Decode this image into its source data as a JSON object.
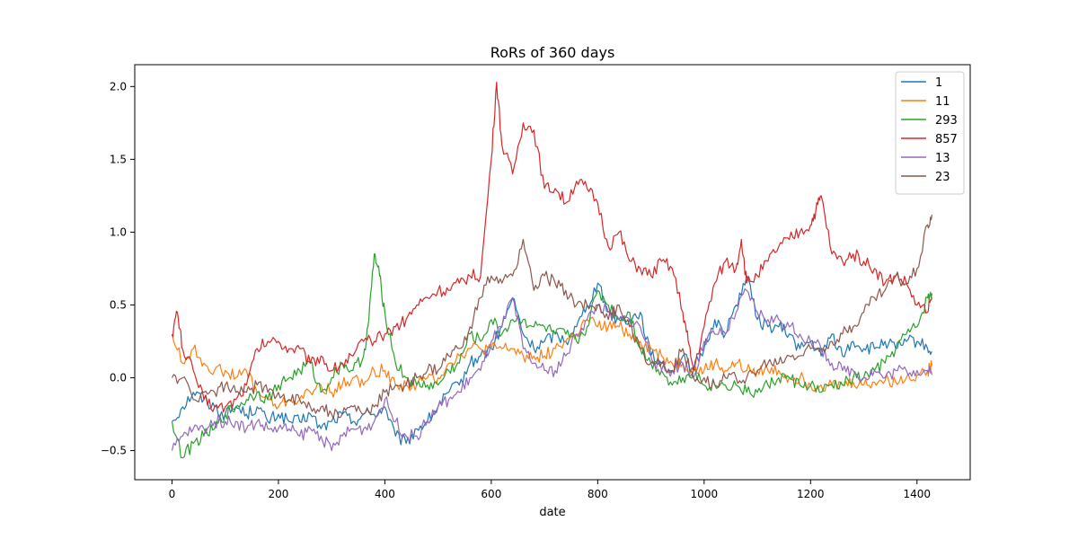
{
  "chart_data": {
    "type": "line",
    "title": "RoRs of 360 days",
    "xlabel": "date",
    "ylabel": "",
    "xlim": [
      -70,
      1500
    ],
    "ylim": [
      -0.7,
      2.15
    ],
    "xticks": [
      0,
      200,
      400,
      600,
      800,
      1000,
      1200,
      1400
    ],
    "yticks": [
      -0.5,
      0.0,
      0.5,
      1.0,
      1.5,
      2.0
    ],
    "xtick_labels": [
      "0",
      "200",
      "400",
      "600",
      "800",
      "1000",
      "1200",
      "1400"
    ],
    "ytick_labels": [
      "−0.5",
      "0.0",
      "0.5",
      "1.0",
      "1.5",
      "2.0"
    ],
    "grid": false,
    "legend_position": "top-right",
    "series": [
      {
        "name": "1",
        "color": "#1f77b4",
        "x": [
          0,
          20,
          40,
          60,
          80,
          100,
          120,
          140,
          160,
          180,
          200,
          220,
          240,
          260,
          280,
          300,
          320,
          340,
          360,
          380,
          400,
          420,
          440,
          460,
          480,
          500,
          520,
          540,
          560,
          580,
          600,
          620,
          640,
          660,
          680,
          700,
          720,
          740,
          760,
          780,
          800,
          820,
          840,
          860,
          880,
          900,
          920,
          940,
          960,
          980,
          1000,
          1020,
          1040,
          1060,
          1080,
          1100,
          1120,
          1140,
          1160,
          1180,
          1200,
          1220,
          1240,
          1260,
          1280,
          1300,
          1320,
          1340,
          1360,
          1380,
          1400,
          1420,
          1428
        ],
        "y": [
          -0.3,
          -0.2,
          -0.1,
          -0.15,
          -0.2,
          -0.25,
          -0.2,
          -0.25,
          -0.2,
          -0.3,
          -0.25,
          -0.3,
          -0.3,
          -0.25,
          -0.35,
          -0.3,
          -0.25,
          -0.3,
          -0.25,
          -0.25,
          -0.2,
          -0.4,
          -0.45,
          -0.35,
          -0.3,
          -0.2,
          -0.1,
          -0.05,
          0.1,
          0.15,
          0.2,
          0.35,
          0.55,
          0.3,
          0.2,
          0.25,
          0.3,
          0.25,
          0.35,
          0.5,
          0.65,
          0.45,
          0.4,
          0.4,
          0.45,
          0.15,
          0.1,
          0.05,
          0.15,
          0.05,
          0.2,
          0.4,
          0.3,
          0.5,
          0.7,
          0.4,
          0.35,
          0.35,
          0.3,
          0.2,
          0.25,
          0.15,
          0.3,
          0.15,
          0.25,
          0.2,
          0.2,
          0.25,
          0.2,
          0.25,
          0.25,
          0.2,
          0.18
        ]
      },
      {
        "name": "11",
        "color": "#ff7f0e",
        "x": [
          0,
          20,
          40,
          60,
          80,
          100,
          120,
          140,
          160,
          180,
          200,
          220,
          240,
          260,
          280,
          300,
          320,
          340,
          360,
          380,
          400,
          420,
          440,
          460,
          480,
          500,
          520,
          540,
          560,
          580,
          600,
          620,
          640,
          660,
          680,
          700,
          720,
          740,
          760,
          780,
          800,
          820,
          840,
          860,
          880,
          900,
          920,
          940,
          960,
          980,
          1000,
          1020,
          1040,
          1060,
          1080,
          1100,
          1120,
          1140,
          1160,
          1180,
          1200,
          1220,
          1240,
          1260,
          1280,
          1300,
          1320,
          1340,
          1360,
          1380,
          1400,
          1420,
          1428
        ],
        "y": [
          0.3,
          0.1,
          0.2,
          0.1,
          0.05,
          0.05,
          0.0,
          0.05,
          -0.1,
          -0.15,
          -0.2,
          -0.15,
          -0.15,
          -0.1,
          -0.05,
          -0.1,
          -0.05,
          0.0,
          -0.05,
          0.05,
          0.05,
          -0.05,
          -0.05,
          -0.05,
          0.0,
          0.0,
          0.1,
          0.15,
          0.2,
          0.2,
          0.2,
          0.2,
          0.2,
          0.15,
          0.15,
          0.15,
          0.2,
          0.25,
          0.3,
          0.4,
          0.35,
          0.35,
          0.35,
          0.3,
          0.25,
          0.2,
          0.15,
          0.1,
          0.1,
          0.05,
          0.05,
          0.1,
          0.05,
          0.1,
          0.05,
          0.05,
          0.05,
          0.05,
          0.0,
          0.0,
          -0.05,
          -0.05,
          -0.05,
          -0.05,
          -0.03,
          -0.05,
          -0.03,
          -0.02,
          -0.03,
          0.0,
          0.02,
          0.05,
          0.08
        ]
      },
      {
        "name": "293",
        "color": "#2ca02c",
        "x": [
          0,
          20,
          40,
          60,
          80,
          100,
          120,
          140,
          160,
          180,
          200,
          220,
          240,
          260,
          280,
          300,
          320,
          340,
          360,
          370,
          380,
          390,
          400,
          420,
          440,
          460,
          480,
          500,
          520,
          540,
          560,
          580,
          600,
          620,
          640,
          660,
          680,
          700,
          720,
          740,
          760,
          780,
          800,
          820,
          840,
          860,
          880,
          900,
          920,
          940,
          960,
          980,
          1000,
          1020,
          1040,
          1060,
          1080,
          1100,
          1120,
          1140,
          1160,
          1180,
          1200,
          1220,
          1240,
          1260,
          1280,
          1300,
          1320,
          1340,
          1360,
          1380,
          1400,
          1420,
          1428
        ],
        "y": [
          -0.3,
          -0.55,
          -0.45,
          -0.4,
          -0.35,
          -0.25,
          -0.2,
          -0.15,
          -0.1,
          -0.15,
          -0.05,
          0.0,
          0.05,
          0.1,
          -0.1,
          0.0,
          0.1,
          0.05,
          0.15,
          0.4,
          0.85,
          0.7,
          0.45,
          0.1,
          0.0,
          -0.05,
          -0.05,
          -0.05,
          0.05,
          0.1,
          0.3,
          0.25,
          0.4,
          0.3,
          0.4,
          0.4,
          0.35,
          0.35,
          0.3,
          0.3,
          0.25,
          0.35,
          0.6,
          0.5,
          0.4,
          0.45,
          0.2,
          0.1,
          0.05,
          -0.05,
          0.0,
          0.05,
          -0.05,
          -0.05,
          -0.05,
          -0.05,
          -0.1,
          -0.1,
          -0.05,
          0.0,
          0.0,
          -0.05,
          -0.05,
          -0.1,
          -0.05,
          -0.05,
          0.0,
          0.0,
          0.05,
          0.1,
          0.2,
          0.3,
          0.35,
          0.55,
          0.58
        ]
      },
      {
        "name": "857",
        "color": "#d62728",
        "x": [
          0,
          10,
          20,
          40,
          60,
          80,
          100,
          120,
          140,
          160,
          180,
          200,
          220,
          240,
          260,
          280,
          300,
          320,
          340,
          360,
          380,
          400,
          420,
          440,
          460,
          480,
          500,
          520,
          540,
          560,
          580,
          600,
          610,
          620,
          640,
          660,
          680,
          700,
          720,
          740,
          760,
          780,
          800,
          820,
          840,
          860,
          880,
          900,
          920,
          940,
          960,
          970,
          980,
          1000,
          1020,
          1040,
          1060,
          1070,
          1080,
          1100,
          1120,
          1140,
          1160,
          1180,
          1200,
          1210,
          1220,
          1240,
          1260,
          1280,
          1300,
          1320,
          1340,
          1360,
          1380,
          1400,
          1420,
          1428
        ],
        "y": [
          0.3,
          0.45,
          0.2,
          0.05,
          -0.15,
          -0.2,
          -0.2,
          -0.15,
          -0.05,
          0.2,
          0.25,
          0.25,
          0.2,
          0.2,
          0.1,
          0.15,
          0.05,
          0.1,
          0.15,
          0.25,
          0.25,
          0.3,
          0.35,
          0.4,
          0.5,
          0.55,
          0.6,
          0.6,
          0.65,
          0.7,
          0.7,
          1.5,
          2.03,
          1.6,
          1.4,
          1.75,
          1.7,
          1.3,
          1.3,
          1.2,
          1.35,
          1.3,
          1.2,
          0.9,
          1.0,
          0.8,
          0.75,
          0.7,
          0.8,
          0.75,
          0.45,
          0.25,
          0.05,
          0.35,
          0.65,
          0.8,
          0.75,
          0.95,
          0.65,
          0.7,
          0.8,
          0.9,
          0.95,
          1.0,
          1.05,
          1.15,
          1.25,
          0.85,
          0.8,
          0.85,
          0.8,
          0.75,
          0.65,
          0.7,
          0.65,
          0.5,
          0.45,
          0.55
        ]
      },
      {
        "name": "13",
        "color": "#9467bd",
        "x": [
          0,
          20,
          40,
          60,
          80,
          100,
          120,
          140,
          160,
          180,
          200,
          220,
          240,
          260,
          280,
          300,
          320,
          340,
          360,
          380,
          400,
          420,
          440,
          460,
          480,
          500,
          520,
          540,
          560,
          580,
          600,
          620,
          640,
          660,
          680,
          700,
          720,
          740,
          760,
          780,
          800,
          820,
          840,
          860,
          880,
          900,
          920,
          940,
          960,
          980,
          1000,
          1020,
          1040,
          1060,
          1080,
          1100,
          1120,
          1140,
          1160,
          1180,
          1200,
          1220,
          1240,
          1260,
          1280,
          1300,
          1320,
          1340,
          1360,
          1380,
          1400,
          1420,
          1428
        ],
        "y": [
          -0.5,
          -0.4,
          -0.35,
          -0.35,
          -0.3,
          -0.3,
          -0.3,
          -0.35,
          -0.3,
          -0.35,
          -0.35,
          -0.35,
          -0.4,
          -0.35,
          -0.4,
          -0.5,
          -0.4,
          -0.35,
          -0.35,
          -0.3,
          -0.15,
          -0.3,
          -0.4,
          -0.4,
          -0.3,
          -0.2,
          -0.15,
          -0.1,
          0.0,
          0.05,
          0.25,
          0.35,
          0.55,
          0.2,
          0.1,
          0.05,
          0.05,
          0.15,
          0.3,
          0.4,
          0.5,
          0.45,
          0.4,
          0.4,
          0.35,
          0.15,
          0.05,
          0.05,
          0.1,
          0.0,
          0.25,
          0.3,
          0.3,
          0.45,
          0.6,
          0.45,
          0.4,
          0.4,
          0.35,
          0.3,
          0.25,
          0.2,
          0.1,
          0.05,
          0.05,
          0.0,
          0.05,
          0.0,
          0.05,
          0.05,
          0.05,
          0.05,
          0.02
        ]
      },
      {
        "name": "23",
        "color": "#8c564b",
        "x": [
          0,
          20,
          40,
          60,
          80,
          100,
          120,
          140,
          160,
          180,
          200,
          220,
          240,
          260,
          280,
          300,
          320,
          340,
          360,
          380,
          400,
          420,
          440,
          460,
          480,
          500,
          520,
          540,
          560,
          580,
          600,
          620,
          640,
          660,
          680,
          700,
          720,
          740,
          760,
          780,
          800,
          820,
          840,
          860,
          880,
          900,
          920,
          940,
          960,
          980,
          1000,
          1020,
          1040,
          1060,
          1080,
          1100,
          1120,
          1140,
          1160,
          1180,
          1200,
          1220,
          1240,
          1260,
          1280,
          1300,
          1320,
          1340,
          1360,
          1380,
          1400,
          1420,
          1428
        ],
        "y": [
          0.0,
          0.0,
          -0.15,
          -0.1,
          -0.1,
          -0.05,
          -0.1,
          -0.1,
          -0.05,
          -0.1,
          -0.1,
          -0.15,
          -0.15,
          -0.2,
          -0.2,
          -0.25,
          -0.25,
          -0.2,
          -0.25,
          -0.2,
          -0.1,
          -0.05,
          -0.05,
          0.0,
          0.05,
          0.05,
          0.15,
          0.2,
          0.35,
          0.55,
          0.7,
          0.65,
          0.7,
          0.95,
          0.6,
          0.7,
          0.65,
          0.6,
          0.5,
          0.5,
          0.5,
          0.4,
          0.5,
          0.35,
          0.2,
          0.1,
          0.1,
          0.05,
          0.2,
          0.0,
          0.0,
          -0.05,
          0.0,
          0.0,
          0.0,
          0.05,
          0.1,
          0.1,
          0.15,
          0.15,
          0.2,
          0.2,
          0.25,
          0.3,
          0.35,
          0.45,
          0.55,
          0.6,
          0.7,
          0.65,
          0.75,
          1.05,
          1.12
        ]
      }
    ]
  }
}
